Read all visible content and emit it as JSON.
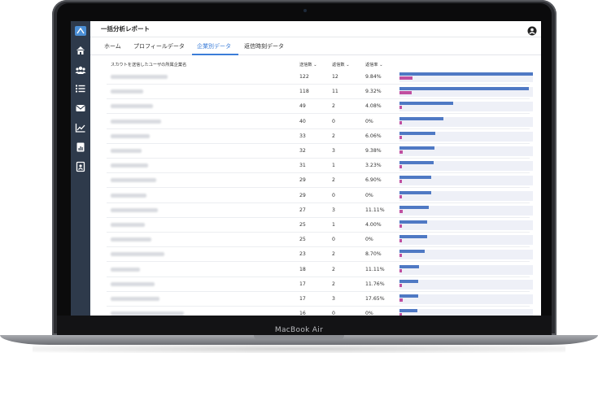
{
  "device": {
    "label": "MacBook Air"
  },
  "app": {
    "title": "一括分析レポート"
  },
  "tabs": [
    {
      "label": "ホーム",
      "active": false
    },
    {
      "label": "プロフィールデータ",
      "active": false
    },
    {
      "label": "企業別データ",
      "active": true
    },
    {
      "label": "返信時刻データ",
      "active": false
    }
  ],
  "sidebar": {
    "icons": [
      "logo-icon",
      "home-icon",
      "users-icon",
      "list-icon",
      "mail-icon",
      "line-chart-icon",
      "report-icon",
      "profile-card-icon"
    ]
  },
  "table": {
    "headers": {
      "company": "スカウトを送信したユーザの所属企業名",
      "sent": "送信数 ⌄",
      "replies": "返信数 ⌄",
      "rate": "返信率 ⌄"
    },
    "rows": [
      {
        "sent": "122",
        "replies": "12",
        "rate": "9.84%",
        "sent_value": 122,
        "reply_value": 12
      },
      {
        "sent": "118",
        "replies": "11",
        "rate": "9.32%",
        "sent_value": 118,
        "reply_value": 11
      },
      {
        "sent": "49",
        "replies": "2",
        "rate": "4.08%",
        "sent_value": 49,
        "reply_value": 2
      },
      {
        "sent": "40",
        "replies": "0",
        "rate": "0%",
        "sent_value": 40,
        "reply_value": 0
      },
      {
        "sent": "33",
        "replies": "2",
        "rate": "6.06%",
        "sent_value": 33,
        "reply_value": 2
      },
      {
        "sent": "32",
        "replies": "3",
        "rate": "9.38%",
        "sent_value": 32,
        "reply_value": 3
      },
      {
        "sent": "31",
        "replies": "1",
        "rate": "3.23%",
        "sent_value": 31,
        "reply_value": 1
      },
      {
        "sent": "29",
        "replies": "2",
        "rate": "6.90%",
        "sent_value": 29,
        "reply_value": 2
      },
      {
        "sent": "29",
        "replies": "0",
        "rate": "0%",
        "sent_value": 29,
        "reply_value": 0
      },
      {
        "sent": "27",
        "replies": "3",
        "rate": "11.11%",
        "sent_value": 27,
        "reply_value": 3
      },
      {
        "sent": "25",
        "replies": "1",
        "rate": "4.00%",
        "sent_value": 25,
        "reply_value": 1
      },
      {
        "sent": "25",
        "replies": "0",
        "rate": "0%",
        "sent_value": 25,
        "reply_value": 0
      },
      {
        "sent": "23",
        "replies": "2",
        "rate": "8.70%",
        "sent_value": 23,
        "reply_value": 2
      },
      {
        "sent": "18",
        "replies": "2",
        "rate": "11.11%",
        "sent_value": 18,
        "reply_value": 2
      },
      {
        "sent": "17",
        "replies": "2",
        "rate": "11.76%",
        "sent_value": 17,
        "reply_value": 2
      },
      {
        "sent": "17",
        "replies": "3",
        "rate": "17.65%",
        "sent_value": 17,
        "reply_value": 3
      },
      {
        "sent": "16",
        "replies": "0",
        "rate": "0%",
        "sent_value": 16,
        "reply_value": 0
      }
    ],
    "bar_max": 122
  },
  "colors": {
    "sent_bar": "#4f79c4",
    "reply_bar": "#c04fa0",
    "accent": "#3b7dd8",
    "sidebar": "#2e3a4b"
  }
}
